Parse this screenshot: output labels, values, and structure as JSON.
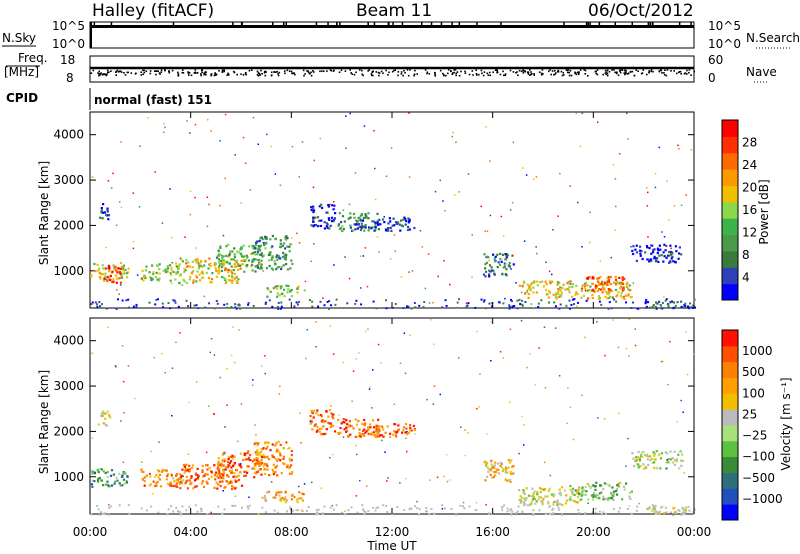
{
  "header": {
    "station": "Halley (fitACF)",
    "beam": "Beam 11",
    "date": "06/Oct/2012"
  },
  "strip": {
    "nsky_label": "N.Sky",
    "nsearch_label": "N.Search",
    "nsky_ticks": [
      "10^5",
      "10^0"
    ],
    "nsearch_ticks": [
      "10^5",
      "10^0"
    ],
    "freq_label": "Freq.",
    "freq_unit": "[MHz]",
    "freq_ticks": [
      "18",
      "8"
    ],
    "nave_label": "Nave",
    "nave_ticks": [
      "60",
      "0"
    ],
    "cpid_label": "CPID",
    "cpid_value": "normal (fast) 151"
  },
  "chart_data": [
    {
      "type": "heatmap",
      "panel": "power",
      "ylabel": "Slant Range [km]",
      "xlabel": "",
      "ylim": [
        180,
        4500
      ],
      "yticks": [
        1000,
        2000,
        3000,
        4000
      ],
      "colorbar": {
        "label": "Power [dB]",
        "ticks": [
          "28",
          "24",
          "20",
          "16",
          "12",
          "8",
          "4"
        ],
        "colors": [
          "#0000ff",
          "#2f3fb8",
          "#3a7a3a",
          "#4a9a4a",
          "#3cb44b",
          "#8cd84a",
          "#f0c000",
          "#ff9900",
          "#ff6a00",
          "#ff3000",
          "#ff0000"
        ]
      },
      "regions": [
        {
          "t": [
            0.0,
            1.5
          ],
          "r": [
            800,
            1200
          ],
          "level": 0.55
        },
        {
          "t": [
            0.3,
            0.8
          ],
          "r": [
            2150,
            2500
          ],
          "level": 0.1
        },
        {
          "t": [
            0.5,
            1.2
          ],
          "r": [
            750,
            1150
          ],
          "level": 0.9
        },
        {
          "t": [
            2.0,
            3.5
          ],
          "r": [
            800,
            1200
          ],
          "level": 0.45
        },
        {
          "t": [
            3.5,
            6.0
          ],
          "r": [
            750,
            1300
          ],
          "level": 0.6
        },
        {
          "t": [
            5.0,
            6.8
          ],
          "r": [
            1000,
            1600
          ],
          "level": 0.4
        },
        {
          "t": [
            6.5,
            8.0
          ],
          "r": [
            1050,
            1800
          ],
          "level": 0.3
        },
        {
          "t": [
            7.0,
            8.5
          ],
          "r": [
            450,
            700
          ],
          "level": 0.45
        },
        {
          "t": [
            8.7,
            9.7
          ],
          "r": [
            1950,
            2500
          ],
          "level": 0.08
        },
        {
          "t": [
            9.8,
            11.5
          ],
          "r": [
            1900,
            2300
          ],
          "level": 0.3
        },
        {
          "t": [
            10.5,
            12.9
          ],
          "r": [
            1900,
            2200
          ],
          "level": 0.12
        },
        {
          "t": [
            15.6,
            16.8
          ],
          "r": [
            900,
            1400
          ],
          "level": 0.2
        },
        {
          "t": [
            17.0,
            21.5
          ],
          "r": [
            400,
            800
          ],
          "level": 0.6
        },
        {
          "t": [
            19.5,
            21.2
          ],
          "r": [
            550,
            900
          ],
          "level": 0.8
        },
        {
          "t": [
            21.5,
            23.5
          ],
          "r": [
            1200,
            1600
          ],
          "level": 0.05
        },
        {
          "t": [
            22.0,
            24.0
          ],
          "r": [
            180,
            350
          ],
          "level": 0.1
        }
      ]
    },
    {
      "type": "heatmap",
      "panel": "velocity",
      "ylabel": "Slant Range [km]",
      "xlabel": "Time UT",
      "ylim": [
        180,
        4500
      ],
      "yticks": [
        1000,
        2000,
        3000,
        4000
      ],
      "xticks": [
        "00:00",
        "04:00",
        "08:00",
        "12:00",
        "16:00",
        "20:00",
        "00:00"
      ],
      "colorbar": {
        "label": "Velocity [m s⁻¹]",
        "ticks": [
          "1000",
          "500",
          "100",
          "25",
          "−25",
          "−100",
          "−500",
          "−1000"
        ],
        "colors": [
          "#0000ff",
          "#2050c0",
          "#2f6e7a",
          "#3a8a3a",
          "#5cc040",
          "#a6e37a",
          "#bbbbbb",
          "#f0c000",
          "#ffa000",
          "#ff8000",
          "#ff5000",
          "#ff1000"
        ]
      },
      "regions": [
        {
          "t": [
            0.0,
            1.5
          ],
          "r": [
            800,
            1200
          ],
          "level": 0.3
        },
        {
          "t": [
            0.3,
            0.8
          ],
          "r": [
            2150,
            2500
          ],
          "level": 0.55
        },
        {
          "t": [
            2.0,
            3.5
          ],
          "r": [
            800,
            1200
          ],
          "level": 0.75
        },
        {
          "t": [
            3.5,
            6.0
          ],
          "r": [
            750,
            1300
          ],
          "level": 0.8
        },
        {
          "t": [
            5.0,
            6.8
          ],
          "r": [
            1000,
            1600
          ],
          "level": 0.82
        },
        {
          "t": [
            6.5,
            8.0
          ],
          "r": [
            1050,
            1800
          ],
          "level": 0.78
        },
        {
          "t": [
            6.8,
            8.5
          ],
          "r": [
            450,
            700
          ],
          "level": 0.68
        },
        {
          "t": [
            8.7,
            9.7
          ],
          "r": [
            1950,
            2500
          ],
          "level": 0.82
        },
        {
          "t": [
            9.8,
            11.5
          ],
          "r": [
            1900,
            2300
          ],
          "level": 0.85
        },
        {
          "t": [
            10.5,
            12.9
          ],
          "r": [
            1900,
            2200
          ],
          "level": 0.82
        },
        {
          "t": [
            15.6,
            16.8
          ],
          "r": [
            900,
            1400
          ],
          "level": 0.65
        },
        {
          "t": [
            17.0,
            19.5
          ],
          "r": [
            400,
            800
          ],
          "level": 0.55
        },
        {
          "t": [
            19.0,
            21.5
          ],
          "r": [
            500,
            900
          ],
          "level": 0.42
        },
        {
          "t": [
            21.5,
            23.5
          ],
          "r": [
            1200,
            1600
          ],
          "level": 0.5
        },
        {
          "t": [
            22.0,
            24.0
          ],
          "r": [
            180,
            350
          ],
          "level": 0.55
        }
      ]
    }
  ]
}
